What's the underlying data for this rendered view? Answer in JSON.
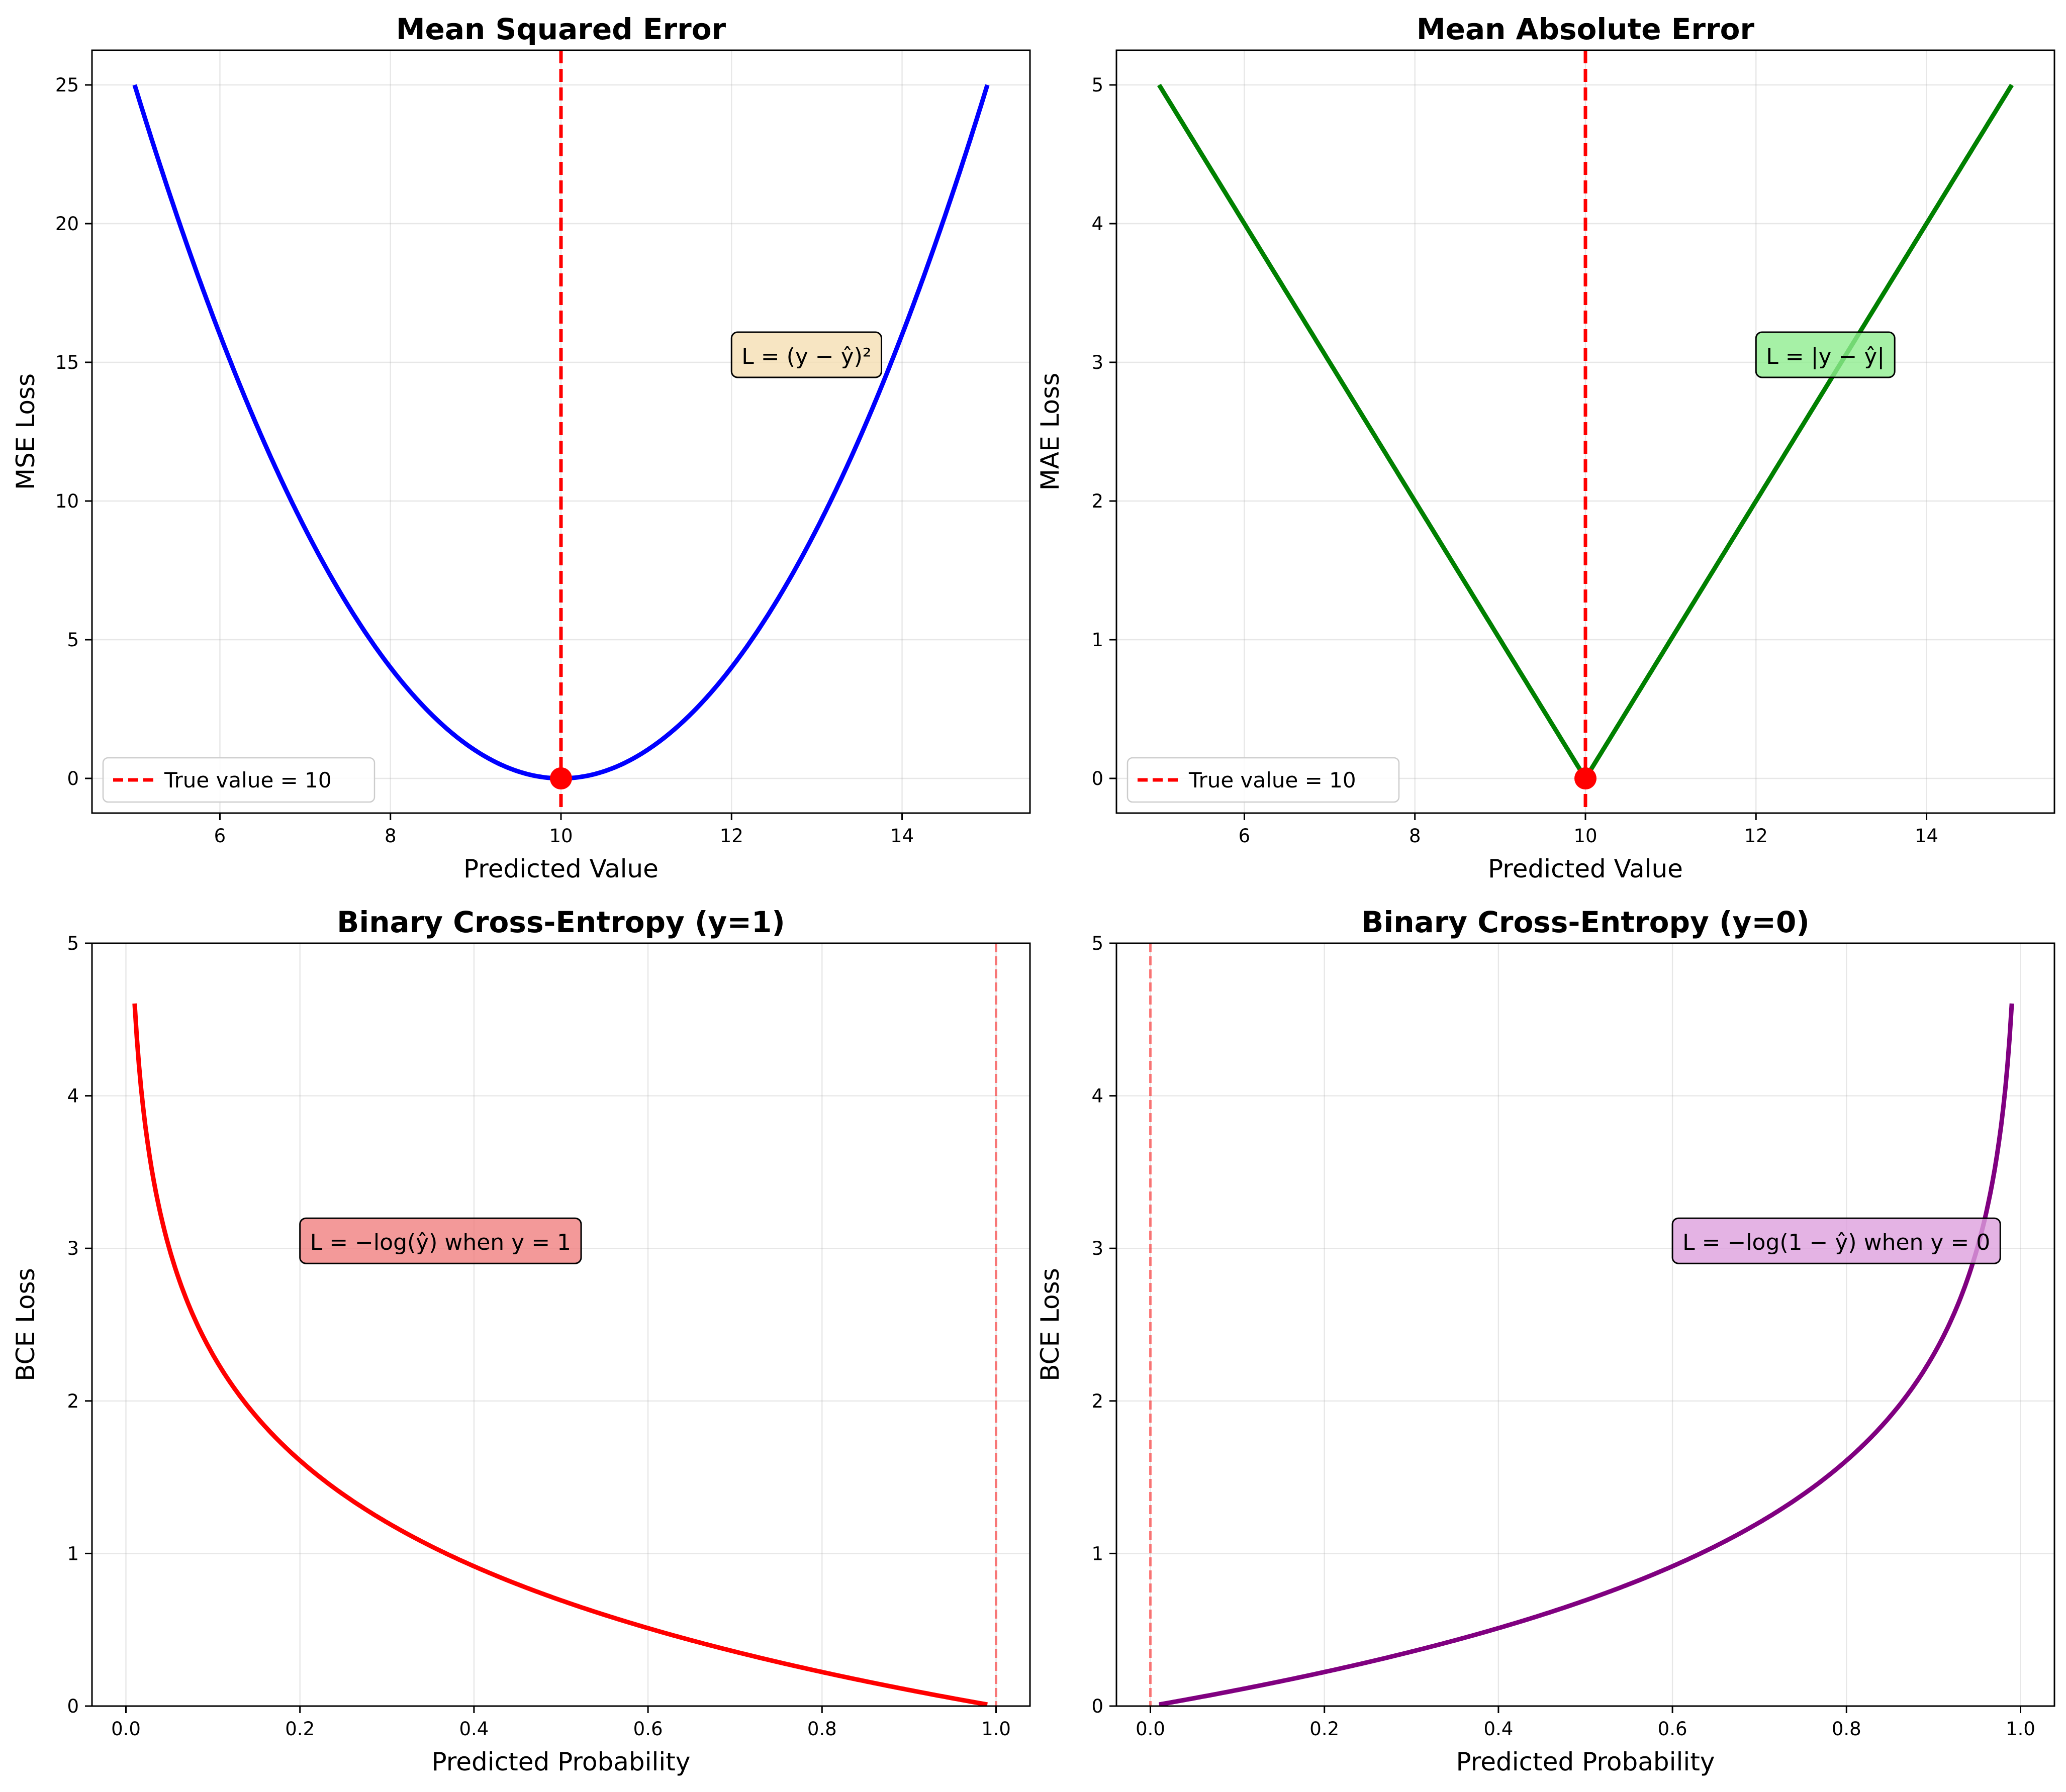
{
  "figure": {
    "background": "#ffffff"
  },
  "chart_data": [
    {
      "type": "line",
      "title": "Mean Squared Error",
      "xlabel": "Predicted Value",
      "ylabel": "MSE Loss",
      "xlim": [
        4.5,
        15.5
      ],
      "ylim": [
        -1.25,
        26.25
      ],
      "xticks": [
        6,
        8,
        10,
        12,
        14
      ],
      "yticks": [
        0,
        5,
        10,
        15,
        20,
        25
      ],
      "grid": true,
      "series": [
        {
          "function": "squared",
          "true_value": 10,
          "x_range": [
            5,
            15
          ],
          "color": "#0000ff"
        }
      ],
      "vline": {
        "x": 10,
        "color": "#ff0000",
        "style": "dashed",
        "label": "True value = 10"
      },
      "marker": {
        "x": 10,
        "y": 0,
        "color": "#ff0000"
      },
      "legend": {
        "position": "lower-left",
        "entries": [
          "True value = 10"
        ]
      },
      "annotation": {
        "text": "L = (y − ŷ)²",
        "x": 12,
        "y": 15,
        "box_color": "#f5deb3"
      }
    },
    {
      "type": "line",
      "title": "Mean Absolute Error",
      "xlabel": "Predicted Value",
      "ylabel": "MAE Loss",
      "xlim": [
        4.5,
        15.5
      ],
      "ylim": [
        -0.25,
        5.25
      ],
      "xticks": [
        6,
        8,
        10,
        12,
        14
      ],
      "yticks": [
        0,
        1,
        2,
        3,
        4,
        5
      ],
      "grid": true,
      "series": [
        {
          "function": "absolute",
          "true_value": 10,
          "x_range": [
            5,
            15
          ],
          "color": "#008000"
        }
      ],
      "vline": {
        "x": 10,
        "color": "#ff0000",
        "style": "dashed",
        "label": "True value = 10"
      },
      "marker": {
        "x": 10,
        "y": 0,
        "color": "#ff0000"
      },
      "legend": {
        "position": "lower-left",
        "entries": [
          "True value = 10"
        ]
      },
      "annotation": {
        "text": "L = |y − ŷ|",
        "x": 12,
        "y": 3,
        "box_color": "#90ee90"
      }
    },
    {
      "type": "line",
      "title": "Binary Cross-Entropy (y=1)",
      "xlabel": "Predicted Probability",
      "ylabel": "BCE Loss",
      "xlim": [
        -0.039,
        1.039
      ],
      "ylim": [
        0,
        5
      ],
      "xticks": [
        0.0,
        0.2,
        0.4,
        0.6,
        0.8,
        1.0
      ],
      "xtick_labels": [
        "0.0",
        "0.2",
        "0.4",
        "0.6",
        "0.8",
        "1.0"
      ],
      "yticks": [
        0,
        1,
        2,
        3,
        4,
        5
      ],
      "grid": true,
      "series": [
        {
          "function": "bce_y1",
          "x_range": [
            0.01,
            0.99
          ],
          "color": "#ff0000"
        }
      ],
      "vline": {
        "x": 1,
        "color": "#ff0000",
        "style": "dashed",
        "alpha": 0.5
      },
      "annotation": {
        "text": "L = −log(ŷ) when y = 1",
        "x": 0.2,
        "y": 3,
        "box_color": "#f08080"
      }
    },
    {
      "type": "line",
      "title": "Binary Cross-Entropy (y=0)",
      "xlabel": "Predicted Probability",
      "ylabel": "BCE Loss",
      "xlim": [
        -0.039,
        1.039
      ],
      "ylim": [
        0,
        5
      ],
      "xticks": [
        0.0,
        0.2,
        0.4,
        0.6,
        0.8,
        1.0
      ],
      "xtick_labels": [
        "0.0",
        "0.2",
        "0.4",
        "0.6",
        "0.8",
        "1.0"
      ],
      "yticks": [
        0,
        1,
        2,
        3,
        4,
        5
      ],
      "grid": true,
      "series": [
        {
          "function": "bce_y0",
          "x_range": [
            0.01,
            0.99
          ],
          "color": "#800080"
        }
      ],
      "vline": {
        "x": 0,
        "color": "#ff0000",
        "style": "dashed",
        "alpha": 0.5
      },
      "annotation": {
        "text": "L = −log(1 − ŷ) when y = 0",
        "x": 0.6,
        "y": 3,
        "box_color": "#dda0dd"
      }
    }
  ]
}
